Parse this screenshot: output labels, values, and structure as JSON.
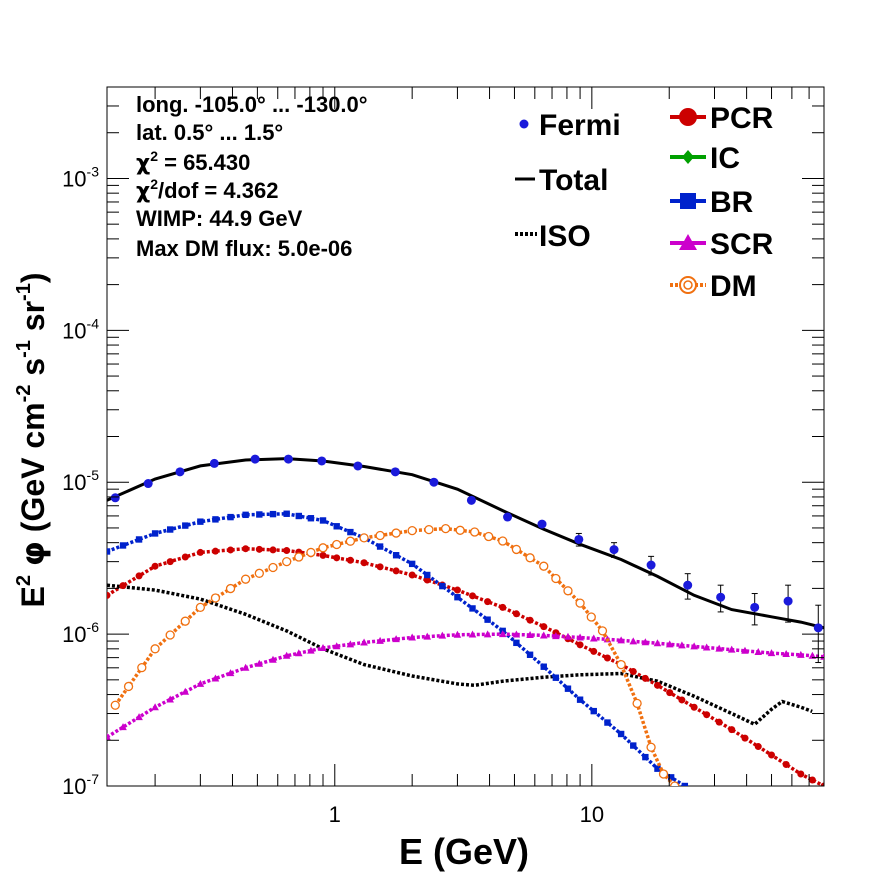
{
  "chart_data": {
    "type": "scatter",
    "x_scale": "log",
    "y_scale": "log",
    "xlim": [
      0.13,
      80
    ],
    "ylim": [
      1e-07,
      0.004
    ],
    "xlabel": "E (GeV)",
    "ylabel": {
      "prefix": "E",
      "prefix_sup": "2",
      "phi": "φ",
      "text": " (GeV cm",
      "sup1": "-2",
      "mid": " s",
      "sup2": "-1",
      "mid2": " sr",
      "sup3": "-1",
      "suffix": ")"
    },
    "x_tick_labels": [
      {
        "value": 1,
        "text": "1"
      },
      {
        "value": 10,
        "text": "10"
      }
    ],
    "y_tick_labels": [
      {
        "value": 1e-07,
        "base": "10",
        "exp": "-7"
      },
      {
        "value": 1e-06,
        "base": "10",
        "exp": "-6"
      },
      {
        "value": 1e-05,
        "base": "10",
        "exp": "-5"
      },
      {
        "value": 0.0001,
        "base": "10",
        "exp": "-4"
      },
      {
        "value": 0.001,
        "base": "10",
        "exp": "-3"
      }
    ],
    "info": [
      {
        "text": "long. -105.0° ... -130.0°"
      },
      {
        "text": "lat. 0.5° ... 1.5°"
      },
      {
        "pre": "χ",
        "sup": "2",
        "post": " = 65.430"
      },
      {
        "pre": "χ",
        "sup": "2",
        "post": "/dof = 4.362"
      },
      {
        "text": "WIMP: 44.9 GeV"
      },
      {
        "text": "Max DM flux: 5.0e-06"
      }
    ],
    "legend": {
      "left": [
        {
          "name": "Fermi",
          "color": "#1a1adb",
          "style": "marker"
        },
        {
          "name": "Total",
          "color": "#000000",
          "style": "solid"
        },
        {
          "name": "ISO",
          "color": "#000000",
          "style": "dotted"
        }
      ],
      "right": [
        {
          "name": "PCR",
          "color": "#cc0000",
          "style": "circle"
        },
        {
          "name": "IC",
          "color": "#00a000",
          "style": "diamond"
        },
        {
          "name": "BR",
          "color": "#0022cc",
          "style": "square"
        },
        {
          "name": "SCR",
          "color": "#cc00cc",
          "style": "triangle"
        },
        {
          "name": "DM",
          "color": "#f07010",
          "style": "open-circle"
        }
      ]
    },
    "fermi": {
      "color": "#1a1adb",
      "points": [
        {
          "x": 0.14,
          "y": 7.9e-06,
          "err": 0
        },
        {
          "x": 0.188,
          "y": 9.8e-06,
          "err": 0
        },
        {
          "x": 0.25,
          "y": 1.17e-05,
          "err": 0
        },
        {
          "x": 0.34,
          "y": 1.33e-05,
          "err": 0
        },
        {
          "x": 0.49,
          "y": 1.42e-05,
          "err": 0
        },
        {
          "x": 0.66,
          "y": 1.42e-05,
          "err": 0
        },
        {
          "x": 0.89,
          "y": 1.38e-05,
          "err": 0
        },
        {
          "x": 1.23,
          "y": 1.28e-05,
          "err": 0
        },
        {
          "x": 1.72,
          "y": 1.17e-05,
          "err": 0
        },
        {
          "x": 2.43,
          "y": 1e-05,
          "err": 0
        },
        {
          "x": 3.4,
          "y": 7.6e-06,
          "err": 0
        },
        {
          "x": 4.7,
          "y": 5.9e-06,
          "err": 0
        },
        {
          "x": 6.4,
          "y": 5.3e-06,
          "err": 0
        },
        {
          "x": 8.9,
          "y": 4.2e-06,
          "err": 4e-07
        },
        {
          "x": 12.2,
          "y": 3.6e-06,
          "err": 4e-07
        },
        {
          "x": 17.0,
          "y": 2.85e-06,
          "err": 4e-07
        },
        {
          "x": 23.6,
          "y": 2.1e-06,
          "err": 4e-07
        },
        {
          "x": 31.7,
          "y": 1.75e-06,
          "err": 3.5e-07
        },
        {
          "x": 43.0,
          "y": 1.5e-06,
          "err": 3.5e-07
        },
        {
          "x": 58.0,
          "y": 1.65e-06,
          "err": 4.5e-07
        },
        {
          "x": 76.0,
          "y": 1.1e-06,
          "err": 4.5e-07
        }
      ]
    },
    "series": [
      {
        "name": "Total",
        "color": "#000000",
        "style": "solid",
        "points": [
          [
            0.13,
            7.6e-06
          ],
          [
            0.2,
            1.05e-05
          ],
          [
            0.3,
            1.28e-05
          ],
          [
            0.45,
            1.4e-05
          ],
          [
            0.65,
            1.43e-05
          ],
          [
            0.9,
            1.38e-05
          ],
          [
            1.3,
            1.27e-05
          ],
          [
            2.0,
            1.12e-05
          ],
          [
            3.0,
            9e-06
          ],
          [
            4.5,
            6.5e-06
          ],
          [
            6.5,
            4.9e-06
          ],
          [
            9.0,
            3.9e-06
          ],
          [
            13,
            3.1e-06
          ],
          [
            18,
            2.4e-06
          ],
          [
            25,
            1.8e-06
          ],
          [
            35,
            1.45e-06
          ],
          [
            50,
            1.3e-06
          ],
          [
            65,
            1.2e-06
          ],
          [
            80,
            1.1e-06
          ]
        ]
      },
      {
        "name": "ISO",
        "color": "#000000",
        "style": "dotted",
        "points": [
          [
            0.13,
            2.1e-06
          ],
          [
            0.2,
            1.95e-06
          ],
          [
            0.3,
            1.7e-06
          ],
          [
            0.45,
            1.35e-06
          ],
          [
            0.65,
            1.05e-06
          ],
          [
            0.9,
            8e-07
          ],
          [
            1.3,
            6.3e-07
          ],
          [
            2.0,
            5.3e-07
          ],
          [
            3.0,
            4.7e-07
          ],
          [
            3.5,
            4.6e-07
          ],
          [
            4.5,
            4.9e-07
          ],
          [
            6.5,
            5.2e-07
          ],
          [
            9.0,
            5.4e-07
          ],
          [
            13,
            5.5e-07
          ],
          [
            18,
            4.9e-07
          ],
          [
            25,
            3.9e-07
          ],
          [
            35,
            3e-07
          ],
          [
            43,
            2.55e-07
          ],
          [
            50,
            3.2e-07
          ],
          [
            55,
            3.6e-07
          ],
          [
            65,
            3.3e-07
          ],
          [
            72,
            3.1e-07
          ]
        ]
      },
      {
        "name": "PCR",
        "color": "#cc0000",
        "style": "circle",
        "points": [
          [
            0.13,
            1.8e-06
          ],
          [
            0.2,
            2.8e-06
          ],
          [
            0.3,
            3.45e-06
          ],
          [
            0.45,
            3.65e-06
          ],
          [
            0.65,
            3.55e-06
          ],
          [
            0.9,
            3.3e-06
          ],
          [
            1.3,
            2.95e-06
          ],
          [
            2.0,
            2.45e-06
          ],
          [
            3.0,
            1.95e-06
          ],
          [
            4.5,
            1.5e-06
          ],
          [
            6.5,
            1.12e-06
          ],
          [
            9.0,
            8.5e-07
          ],
          [
            13,
            6.3e-07
          ],
          [
            18,
            4.6e-07
          ],
          [
            25,
            3.3e-07
          ],
          [
            35,
            2.35e-07
          ],
          [
            50,
            1.6e-07
          ],
          [
            65,
            1.2e-07
          ],
          [
            80,
            1e-07
          ]
        ]
      },
      {
        "name": "BR",
        "color": "#0022cc",
        "style": "square",
        "points": [
          [
            0.13,
            3.5e-06
          ],
          [
            0.2,
            4.6e-06
          ],
          [
            0.3,
            5.5e-06
          ],
          [
            0.45,
            6.1e-06
          ],
          [
            0.65,
            6.2e-06
          ],
          [
            0.9,
            5.6e-06
          ],
          [
            1.3,
            4.3e-06
          ],
          [
            2.0,
            2.9e-06
          ],
          [
            3.0,
            1.75e-06
          ],
          [
            4.5,
            1.05e-06
          ],
          [
            6.5,
            6.1e-07
          ],
          [
            9.0,
            3.7e-07
          ],
          [
            13,
            2.2e-07
          ],
          [
            18,
            1.3e-07
          ],
          [
            23,
            1e-07
          ]
        ]
      },
      {
        "name": "SCR",
        "color": "#cc00cc",
        "style": "triangle",
        "points": [
          [
            0.13,
            2.1e-07
          ],
          [
            0.2,
            3.3e-07
          ],
          [
            0.3,
            4.7e-07
          ],
          [
            0.45,
            6e-07
          ],
          [
            0.65,
            7.2e-07
          ],
          [
            0.9,
            8.1e-07
          ],
          [
            1.3,
            8.8e-07
          ],
          [
            2.0,
            9.5e-07
          ],
          [
            3.0,
            9.9e-07
          ],
          [
            4.5,
            1e-06
          ],
          [
            6.5,
            9.8e-07
          ],
          [
            9.0,
            9.5e-07
          ],
          [
            13,
            9.1e-07
          ],
          [
            18,
            8.7e-07
          ],
          [
            25,
            8.3e-07
          ],
          [
            35,
            7.9e-07
          ],
          [
            50,
            7.5e-07
          ],
          [
            65,
            7.3e-07
          ],
          [
            80,
            7.1e-07
          ]
        ]
      },
      {
        "name": "DM",
        "color": "#f07010",
        "style": "open-circle",
        "points": [
          [
            0.14,
            3.4e-07
          ],
          [
            0.2,
            8e-07
          ],
          [
            0.3,
            1.5e-06
          ],
          [
            0.45,
            2.3e-06
          ],
          [
            0.65,
            3e-06
          ],
          [
            0.9,
            3.7e-06
          ],
          [
            1.3,
            4.3e-06
          ],
          [
            2.0,
            4.8e-06
          ],
          [
            2.7,
            4.95e-06
          ],
          [
            3.5,
            4.7e-06
          ],
          [
            4.5,
            4.1e-06
          ],
          [
            6.5,
            2.8e-06
          ],
          [
            9.0,
            1.6e-06
          ],
          [
            11,
            1.05e-06
          ],
          [
            13,
            6.3e-07
          ],
          [
            15,
            3.5e-07
          ],
          [
            17,
            1.8e-07
          ],
          [
            19,
            1.2e-07
          ],
          [
            21,
            1e-07
          ]
        ]
      }
    ]
  }
}
